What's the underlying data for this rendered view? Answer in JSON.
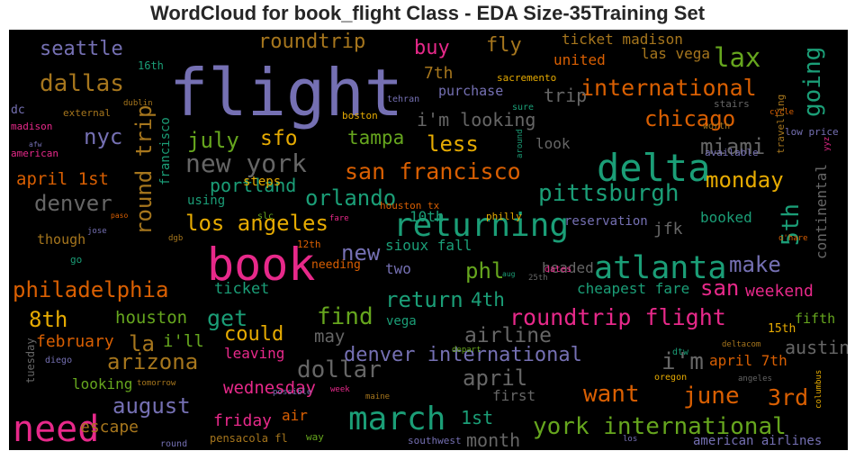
{
  "title": "WordCloud for book_flight Class - EDA Size-35Training Set",
  "colors": {
    "purple": "#7570b3",
    "green": "#1b9e77",
    "orange": "#d95f02",
    "pink": "#e7298a",
    "lime": "#66a61e",
    "gold": "#e6ab02",
    "brown": "#a6761d",
    "gray": "#666666"
  },
  "words": [
    {
      "text": "flight",
      "color": "purple"
    },
    {
      "text": "book",
      "color": "pink"
    },
    {
      "text": "delta",
      "color": "green"
    },
    {
      "text": "returning",
      "color": "green"
    },
    {
      "text": "atlanta",
      "color": "green"
    },
    {
      "text": "march",
      "color": "green"
    },
    {
      "text": "need",
      "color": "pink"
    },
    {
      "text": "dallas",
      "color": "brown"
    },
    {
      "text": "seattle",
      "color": "purple"
    },
    {
      "text": "roundtrip",
      "color": "brown"
    },
    {
      "text": "buy",
      "color": "pink"
    },
    {
      "text": "fly",
      "color": "brown"
    },
    {
      "text": "lax",
      "color": "lime"
    },
    {
      "text": "international",
      "color": "orange"
    },
    {
      "text": "going",
      "color": "green"
    },
    {
      "text": "chicago",
      "color": "orange"
    },
    {
      "text": "i'm looking",
      "color": "gray"
    },
    {
      "text": "trip",
      "color": "gray"
    },
    {
      "text": "new york",
      "color": "gray"
    },
    {
      "text": "july",
      "color": "lime"
    },
    {
      "text": "sfo",
      "color": "gold"
    },
    {
      "text": "nyc",
      "color": "purple"
    },
    {
      "text": "round trip",
      "color": "brown"
    },
    {
      "text": "tampa",
      "color": "lime"
    },
    {
      "text": "less",
      "color": "gold"
    },
    {
      "text": "miami",
      "color": "gray"
    },
    {
      "text": "monday",
      "color": "gold"
    },
    {
      "text": "san francisco",
      "color": "orange"
    },
    {
      "text": "pittsburgh",
      "color": "green"
    },
    {
      "text": "5th",
      "color": "green"
    },
    {
      "text": "denver",
      "color": "gray"
    },
    {
      "text": "portland",
      "color": "green"
    },
    {
      "text": "orlando",
      "color": "green"
    },
    {
      "text": "los angeles",
      "color": "gold"
    },
    {
      "text": "new",
      "color": "purple"
    },
    {
      "text": "april 1st",
      "color": "orange"
    },
    {
      "text": "philadelphia",
      "color": "orange"
    },
    {
      "text": "phl",
      "color": "lime"
    },
    {
      "text": "make",
      "color": "purple"
    },
    {
      "text": "san",
      "color": "pink"
    },
    {
      "text": "weekend",
      "color": "pink"
    },
    {
      "text": "return",
      "color": "green"
    },
    {
      "text": "4th",
      "color": "green"
    },
    {
      "text": "get",
      "color": "green"
    },
    {
      "text": "find",
      "color": "lime"
    },
    {
      "text": "roundtrip flight",
      "color": "pink"
    },
    {
      "text": "8th",
      "color": "gold"
    },
    {
      "text": "la",
      "color": "brown"
    },
    {
      "text": "houston",
      "color": "lime"
    },
    {
      "text": "could",
      "color": "gold"
    },
    {
      "text": "may",
      "color": "gray"
    },
    {
      "text": "airline",
      "color": "gray"
    },
    {
      "text": "arizona",
      "color": "brown"
    },
    {
      "text": "dollar",
      "color": "gray"
    },
    {
      "text": "denver international",
      "color": "purple"
    },
    {
      "text": "i'm",
      "color": "gray"
    },
    {
      "text": "austin",
      "color": "gray"
    },
    {
      "text": "april",
      "color": "gray"
    },
    {
      "text": "june",
      "color": "orange"
    },
    {
      "text": "3rd",
      "color": "orange"
    },
    {
      "text": "want",
      "color": "orange"
    },
    {
      "text": "august",
      "color": "purple"
    },
    {
      "text": "wednesday",
      "color": "pink"
    },
    {
      "text": "york international",
      "color": "lime"
    },
    {
      "text": "1st",
      "color": "green"
    },
    {
      "text": "month",
      "color": "gray"
    },
    {
      "text": "escape",
      "color": "brown"
    },
    {
      "text": "friday",
      "color": "pink"
    },
    {
      "text": "february",
      "color": "orange"
    },
    {
      "text": "i'll",
      "color": "lime"
    },
    {
      "text": "leaving",
      "color": "pink"
    },
    {
      "text": "looking",
      "color": "lime"
    },
    {
      "text": "first",
      "color": "gray"
    },
    {
      "text": "air",
      "color": "orange"
    },
    {
      "text": "ticket",
      "color": "green"
    },
    {
      "text": "cheapest fare",
      "color": "green"
    },
    {
      "text": "headed",
      "color": "gray"
    },
    {
      "text": "jfk",
      "color": "gray"
    },
    {
      "text": "two",
      "color": "purple"
    },
    {
      "text": "sioux fall",
      "color": "green"
    },
    {
      "text": "though",
      "color": "brown"
    },
    {
      "text": "booked",
      "color": "green"
    },
    {
      "text": "reservation",
      "color": "purple"
    },
    {
      "text": "continental",
      "color": "gray"
    },
    {
      "text": "10th",
      "color": "green"
    },
    {
      "text": "united",
      "color": "orange"
    },
    {
      "text": "las vega",
      "color": "brown"
    },
    {
      "text": "ticket madison",
      "color": "brown"
    },
    {
      "text": "7th",
      "color": "brown"
    },
    {
      "text": "purchase",
      "color": "purple"
    },
    {
      "text": "look",
      "color": "gray"
    },
    {
      "text": "april 7th",
      "color": "orange"
    },
    {
      "text": "fifth",
      "color": "lime"
    },
    {
      "text": "15th",
      "color": "gold"
    },
    {
      "text": "vega",
      "color": "green"
    },
    {
      "text": "steps",
      "color": "gold"
    },
    {
      "text": "using",
      "color": "green"
    },
    {
      "text": "francisco",
      "color": "green"
    },
    {
      "text": "16th",
      "color": "green"
    },
    {
      "text": "dc",
      "color": "purple"
    },
    {
      "text": "madison",
      "color": "pink"
    },
    {
      "text": "american",
      "color": "pink"
    },
    {
      "text": "external",
      "color": "brown"
    },
    {
      "text": "dublin",
      "color": "brown"
    },
    {
      "text": "boston",
      "color": "gold"
    },
    {
      "text": "sacremento",
      "color": "gold"
    },
    {
      "text": "tehran",
      "color": "purple"
    },
    {
      "text": "sure",
      "color": "green"
    },
    {
      "text": "stairs",
      "color": "gray"
    },
    {
      "text": "cycle",
      "color": "orange"
    },
    {
      "text": "travelling",
      "color": "brown"
    },
    {
      "text": "low price",
      "color": "purple"
    },
    {
      "text": "worth",
      "color": "brown"
    },
    {
      "text": "available",
      "color": "purple"
    },
    {
      "text": "yyz",
      "color": "pink"
    },
    {
      "text": "o'hare",
      "color": "orange"
    },
    {
      "text": "houston tx",
      "color": "orange"
    },
    {
      "text": "philly",
      "color": "gold"
    },
    {
      "text": "12th",
      "color": "orange"
    },
    {
      "text": "needing",
      "color": "orange"
    },
    {
      "text": "dates",
      "color": "pink"
    },
    {
      "text": "aug",
      "color": "green"
    },
    {
      "text": "25th",
      "color": "gray"
    },
    {
      "text": "go",
      "color": "green"
    },
    {
      "text": "paso",
      "color": "orange"
    },
    {
      "text": "jose",
      "color": "purple"
    },
    {
      "text": "dgb",
      "color": "brown"
    },
    {
      "text": "slc",
      "color": "lime"
    },
    {
      "text": "fare",
      "color": "pink"
    },
    {
      "text": "around",
      "color": "green"
    },
    {
      "text": "afw",
      "color": "purple"
    },
    {
      "text": "tuesday",
      "color": "gray"
    },
    {
      "text": "diego",
      "color": "purple"
    },
    {
      "text": "tomorrow",
      "color": "brown"
    },
    {
      "text": "round",
      "color": "purple"
    },
    {
      "text": "possible",
      "color": "purple"
    },
    {
      "text": "week",
      "color": "pink"
    },
    {
      "text": "maine",
      "color": "brown"
    },
    {
      "text": "depart",
      "color": "lime"
    },
    {
      "text": "dtw",
      "color": "green"
    },
    {
      "text": "deltacom",
      "color": "brown"
    },
    {
      "text": "oregon",
      "color": "gold"
    },
    {
      "text": "angeles",
      "color": "gray"
    },
    {
      "text": "columbus",
      "color": "gold"
    },
    {
      "text": "los",
      "color": "purple"
    },
    {
      "text": "pensacola fl",
      "color": "brown"
    },
    {
      "text": "way",
      "color": "lime"
    },
    {
      "text": "southwest",
      "color": "purple"
    },
    {
      "text": "american airlines",
      "color": "purple"
    }
  ]
}
